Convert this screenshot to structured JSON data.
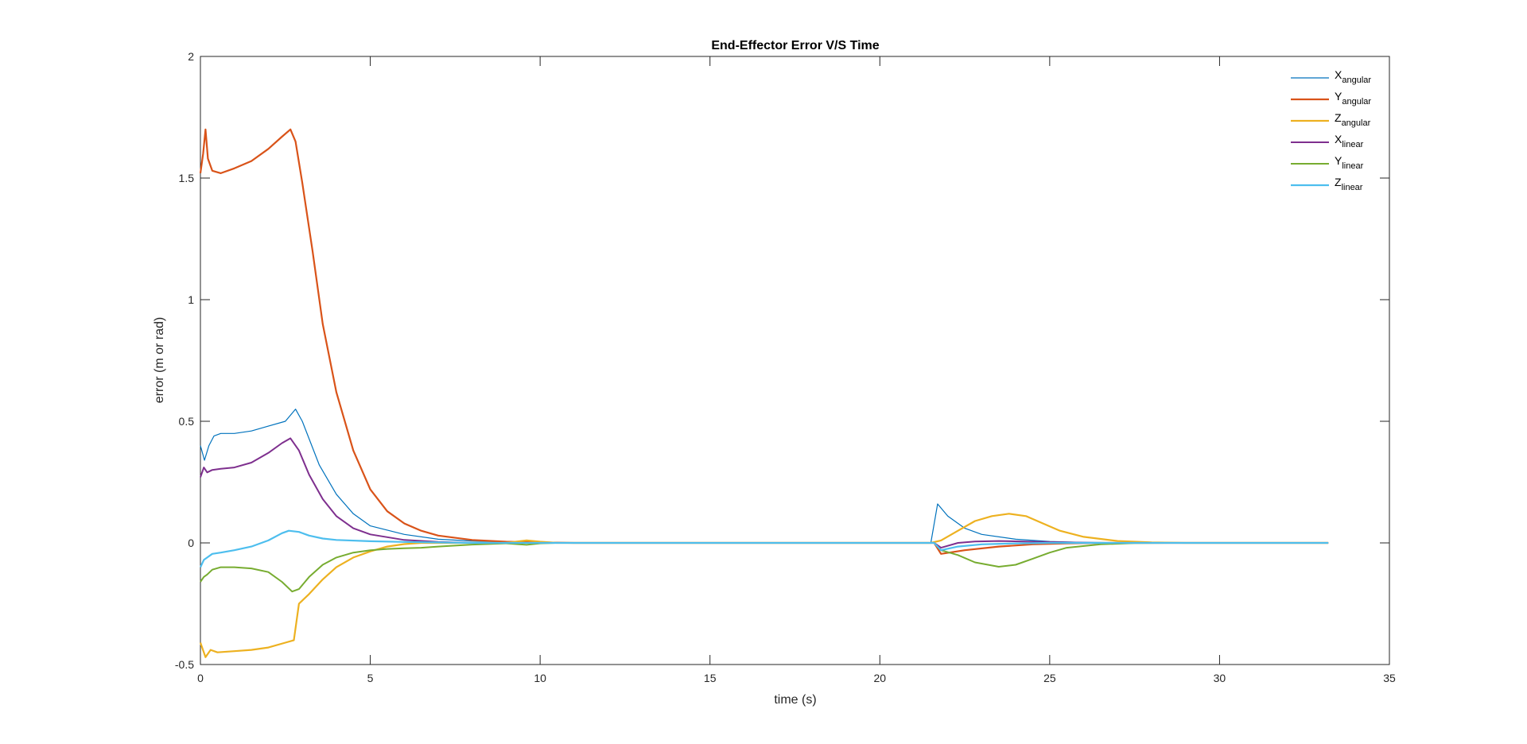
{
  "chart_data": {
    "type": "line",
    "title": "End-Effector Error V/S Time",
    "xlabel": "time (s)",
    "ylabel": "error (m or rad)",
    "xlim": [
      0,
      35
    ],
    "ylim": [
      -0.5,
      2
    ],
    "xticks": [
      0,
      5,
      10,
      15,
      20,
      25,
      30,
      35
    ],
    "xtick_labels": [
      "0",
      "5",
      "10",
      "15",
      "20",
      "25",
      "30",
      "35"
    ],
    "yticks": [
      -0.5,
      0,
      0.5,
      1,
      1.5,
      2
    ],
    "ytick_labels": [
      "-0.5",
      "0",
      "0.5",
      "1",
      "1.5",
      "2"
    ],
    "grid": false,
    "legend_position": "top-right",
    "series": [
      {
        "name": "X",
        "name_sub": "angular",
        "color": "#0072BD",
        "width": 1.2,
        "points": [
          [
            0,
            0.4
          ],
          [
            0.12,
            0.34
          ],
          [
            0.25,
            0.4
          ],
          [
            0.4,
            0.44
          ],
          [
            0.6,
            0.45
          ],
          [
            1.0,
            0.45
          ],
          [
            1.5,
            0.46
          ],
          [
            2.0,
            0.48
          ],
          [
            2.5,
            0.5
          ],
          [
            2.8,
            0.55
          ],
          [
            3.0,
            0.5
          ],
          [
            3.5,
            0.32
          ],
          [
            4.0,
            0.2
          ],
          [
            4.5,
            0.12
          ],
          [
            5.0,
            0.07
          ],
          [
            6.0,
            0.035
          ],
          [
            7.0,
            0.015
          ],
          [
            8.0,
            0.008
          ],
          [
            9.0,
            0.004
          ],
          [
            10.0,
            0.002
          ],
          [
            12.0,
            0
          ],
          [
            21.5,
            0
          ],
          [
            21.7,
            0.16
          ],
          [
            22.0,
            0.11
          ],
          [
            22.5,
            0.06
          ],
          [
            23.0,
            0.035
          ],
          [
            24.0,
            0.015
          ],
          [
            25.0,
            0.006
          ],
          [
            26.0,
            0.002
          ],
          [
            28.0,
            0
          ],
          [
            33.2,
            0
          ]
        ]
      },
      {
        "name": "Y",
        "name_sub": "angular",
        "color": "#D95319",
        "width": 2.2,
        "points": [
          [
            0,
            1.52
          ],
          [
            0.08,
            1.6
          ],
          [
            0.15,
            1.7
          ],
          [
            0.22,
            1.58
          ],
          [
            0.35,
            1.53
          ],
          [
            0.6,
            1.52
          ],
          [
            1.0,
            1.54
          ],
          [
            1.5,
            1.57
          ],
          [
            2.0,
            1.62
          ],
          [
            2.4,
            1.67
          ],
          [
            2.65,
            1.7
          ],
          [
            2.8,
            1.65
          ],
          [
            3.0,
            1.48
          ],
          [
            3.3,
            1.2
          ],
          [
            3.6,
            0.9
          ],
          [
            4.0,
            0.62
          ],
          [
            4.5,
            0.38
          ],
          [
            5.0,
            0.22
          ],
          [
            5.5,
            0.13
          ],
          [
            6.0,
            0.08
          ],
          [
            6.5,
            0.05
          ],
          [
            7.0,
            0.03
          ],
          [
            8.0,
            0.012
          ],
          [
            9.0,
            0.005
          ],
          [
            10.0,
            0.002
          ],
          [
            11.0,
            0
          ],
          [
            21.6,
            0
          ],
          [
            21.8,
            -0.045
          ],
          [
            22.5,
            -0.03
          ],
          [
            23.5,
            -0.015
          ],
          [
            24.5,
            -0.006
          ],
          [
            25.5,
            -0.002
          ],
          [
            26.5,
            0
          ],
          [
            33.2,
            0
          ]
        ]
      },
      {
        "name": "Z",
        "name_sub": "angular",
        "color": "#EDB120",
        "width": 2.2,
        "points": [
          [
            0,
            -0.41
          ],
          [
            0.15,
            -0.47
          ],
          [
            0.3,
            -0.44
          ],
          [
            0.5,
            -0.45
          ],
          [
            1.0,
            -0.445
          ],
          [
            1.5,
            -0.44
          ],
          [
            2.0,
            -0.43
          ],
          [
            2.5,
            -0.41
          ],
          [
            2.75,
            -0.4
          ],
          [
            2.9,
            -0.25
          ],
          [
            3.2,
            -0.21
          ],
          [
            3.6,
            -0.15
          ],
          [
            4.0,
            -0.1
          ],
          [
            4.5,
            -0.06
          ],
          [
            5.0,
            -0.035
          ],
          [
            5.5,
            -0.015
          ],
          [
            6.0,
            -0.005
          ],
          [
            6.5,
            0
          ],
          [
            9.0,
            0
          ],
          [
            9.6,
            0.01
          ],
          [
            10.0,
            0.005
          ],
          [
            10.5,
            0
          ],
          [
            21.5,
            0
          ],
          [
            21.8,
            0.01
          ],
          [
            22.3,
            0.05
          ],
          [
            22.8,
            0.09
          ],
          [
            23.3,
            0.11
          ],
          [
            23.8,
            0.12
          ],
          [
            24.3,
            0.11
          ],
          [
            24.8,
            0.08
          ],
          [
            25.3,
            0.05
          ],
          [
            26.0,
            0.025
          ],
          [
            27.0,
            0.008
          ],
          [
            28.0,
            0.002
          ],
          [
            29.0,
            0
          ],
          [
            33.2,
            0
          ]
        ]
      },
      {
        "name": "X",
        "name_sub": "linear",
        "color": "#7E2F8E",
        "width": 2.0,
        "points": [
          [
            0,
            0.27
          ],
          [
            0.1,
            0.31
          ],
          [
            0.2,
            0.29
          ],
          [
            0.35,
            0.3
          ],
          [
            0.6,
            0.305
          ],
          [
            1.0,
            0.31
          ],
          [
            1.5,
            0.33
          ],
          [
            2.0,
            0.37
          ],
          [
            2.4,
            0.41
          ],
          [
            2.65,
            0.43
          ],
          [
            2.9,
            0.38
          ],
          [
            3.2,
            0.28
          ],
          [
            3.6,
            0.18
          ],
          [
            4.0,
            0.11
          ],
          [
            4.5,
            0.06
          ],
          [
            5.0,
            0.035
          ],
          [
            6.0,
            0.012
          ],
          [
            7.0,
            0.004
          ],
          [
            8.0,
            0
          ],
          [
            21.6,
            0
          ],
          [
            21.8,
            -0.02
          ],
          [
            22.3,
            0
          ],
          [
            22.8,
            0.006
          ],
          [
            23.5,
            0.008
          ],
          [
            24.5,
            0.005
          ],
          [
            25.5,
            0.002
          ],
          [
            26.5,
            0
          ],
          [
            33.2,
            0
          ]
        ]
      },
      {
        "name": "Y",
        "name_sub": "linear",
        "color": "#77AC30",
        "width": 2.0,
        "points": [
          [
            0,
            -0.16
          ],
          [
            0.1,
            -0.14
          ],
          [
            0.2,
            -0.13
          ],
          [
            0.35,
            -0.11
          ],
          [
            0.6,
            -0.1
          ],
          [
            1.0,
            -0.1
          ],
          [
            1.5,
            -0.105
          ],
          [
            2.0,
            -0.12
          ],
          [
            2.4,
            -0.16
          ],
          [
            2.7,
            -0.2
          ],
          [
            2.9,
            -0.19
          ],
          [
            3.2,
            -0.14
          ],
          [
            3.6,
            -0.09
          ],
          [
            4.0,
            -0.06
          ],
          [
            4.5,
            -0.04
          ],
          [
            5.0,
            -0.03
          ],
          [
            5.5,
            -0.025
          ],
          [
            6.0,
            -0.022
          ],
          [
            6.5,
            -0.02
          ],
          [
            7.0,
            -0.015
          ],
          [
            8.0,
            -0.007
          ],
          [
            9.0,
            -0.002
          ],
          [
            9.6,
            -0.008
          ],
          [
            10.0,
            -0.002
          ],
          [
            10.5,
            0
          ],
          [
            21.6,
            0
          ],
          [
            21.8,
            -0.03
          ],
          [
            22.3,
            -0.05
          ],
          [
            22.8,
            -0.08
          ],
          [
            23.5,
            -0.098
          ],
          [
            24.0,
            -0.09
          ],
          [
            24.5,
            -0.065
          ],
          [
            25.0,
            -0.04
          ],
          [
            25.5,
            -0.02
          ],
          [
            26.5,
            -0.006
          ],
          [
            27.5,
            -0.001
          ],
          [
            28.5,
            0
          ],
          [
            33.2,
            0
          ]
        ]
      },
      {
        "name": "Z",
        "name_sub": "linear",
        "color": "#4DBEEE",
        "width": 2.2,
        "points": [
          [
            0,
            -0.1
          ],
          [
            0.1,
            -0.07
          ],
          [
            0.2,
            -0.06
          ],
          [
            0.35,
            -0.045
          ],
          [
            0.6,
            -0.04
          ],
          [
            1.0,
            -0.03
          ],
          [
            1.5,
            -0.015
          ],
          [
            2.0,
            0.01
          ],
          [
            2.4,
            0.04
          ],
          [
            2.6,
            0.05
          ],
          [
            2.9,
            0.045
          ],
          [
            3.2,
            0.03
          ],
          [
            3.6,
            0.018
          ],
          [
            4.0,
            0.012
          ],
          [
            5.0,
            0.007
          ],
          [
            6.0,
            0.004
          ],
          [
            7.0,
            0.002
          ],
          [
            8.0,
            0
          ],
          [
            21.6,
            0
          ],
          [
            21.8,
            -0.03
          ],
          [
            22.3,
            -0.015
          ],
          [
            23.0,
            -0.006
          ],
          [
            24.0,
            -0.002
          ],
          [
            25.0,
            0
          ],
          [
            33.2,
            0
          ]
        ]
      }
    ]
  }
}
